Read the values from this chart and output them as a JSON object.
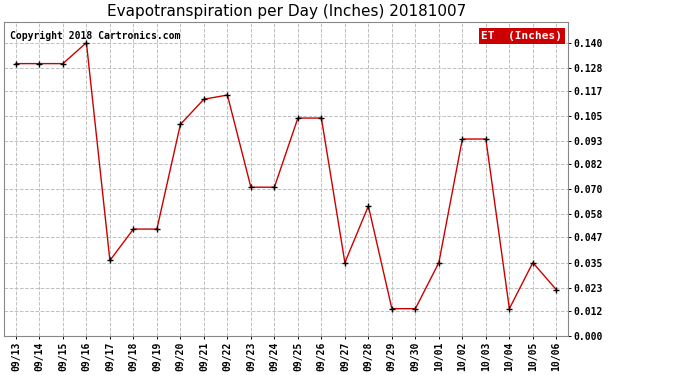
{
  "title": "Evapotranspiration per Day (Inches) 20181007",
  "copyright_text": "Copyright 2018 Cartronics.com",
  "legend_label": "ET  (Inches)",
  "legend_bg": "#cc0000",
  "legend_text_color": "#ffffff",
  "line_color": "#cc0000",
  "marker_color": "#000000",
  "background_color": "#ffffff",
  "grid_color": "#c0c0c0",
  "dates": [
    "09/13",
    "09/14",
    "09/15",
    "09/16",
    "09/17",
    "09/18",
    "09/19",
    "09/20",
    "09/21",
    "09/22",
    "09/23",
    "09/24",
    "09/25",
    "09/26",
    "09/27",
    "09/28",
    "09/29",
    "09/30",
    "10/01",
    "10/02",
    "10/03",
    "10/04",
    "10/05",
    "10/06"
  ],
  "values": [
    0.13,
    0.13,
    0.13,
    0.14,
    0.036,
    0.051,
    0.051,
    0.101,
    0.113,
    0.115,
    0.071,
    0.071,
    0.104,
    0.104,
    0.035,
    0.062,
    0.013,
    0.013,
    0.035,
    0.094,
    0.094,
    0.013,
    0.035,
    0.022
  ],
  "yticks": [
    0.0,
    0.012,
    0.023,
    0.035,
    0.047,
    0.058,
    0.07,
    0.082,
    0.093,
    0.105,
    0.117,
    0.128,
    0.14
  ],
  "ylim": [
    0.0,
    0.15
  ],
  "title_fontsize": 11,
  "tick_fontsize": 7,
  "copyright_fontsize": 7,
  "legend_fontsize": 8
}
